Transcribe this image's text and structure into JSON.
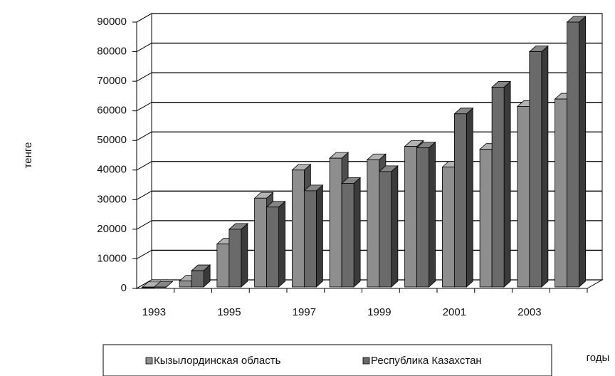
{
  "chart_data": {
    "type": "bar3d",
    "y_label": "тенге",
    "x_label": "годы",
    "categories": [
      "1993",
      null,
      "1995",
      null,
      "1997",
      null,
      "1999",
      null,
      "2001",
      null,
      "2003",
      null
    ],
    "series": [
      {
        "name": "Кызылординская область",
        "color": "#8e8e8e",
        "values": [
          300,
          2500,
          15000,
          30500,
          40000,
          44000,
          43500,
          48000,
          41000,
          47000,
          61500,
          64000
        ]
      },
      {
        "name": "Республика Казахстан",
        "color": "#6a6a6a",
        "values": [
          400,
          6000,
          20000,
          27500,
          33000,
          35500,
          39500,
          47500,
          59000,
          68000,
          80000,
          90000
        ]
      }
    ],
    "ylim": [
      0,
      90000
    ],
    "yticks": [
      0,
      10000,
      20000,
      30000,
      40000,
      50000,
      60000,
      70000,
      80000,
      90000
    ],
    "grid": true,
    "legend": "bottom"
  }
}
